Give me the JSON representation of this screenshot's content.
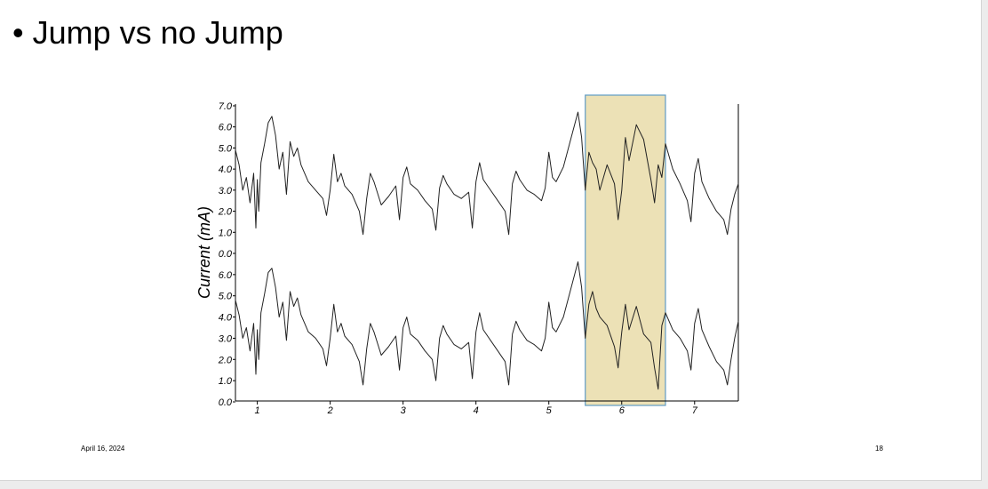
{
  "slide": {
    "bullet": "•",
    "title": "Jump vs no Jump",
    "footer_date": "April 16, 2024",
    "page_number": "18"
  },
  "chart_data": {
    "type": "line",
    "ylabel": "Current (mA)",
    "xlabel": "",
    "xlim": [
      0.7,
      7.6
    ],
    "x_ticks": [
      "1",
      "2",
      "3",
      "4",
      "5",
      "6",
      "7"
    ],
    "highlight": {
      "x_range": [
        5.5,
        6.6
      ],
      "fill": "#ece1b6",
      "stroke": "#5f9bc4"
    },
    "panels": [
      {
        "name": "top",
        "ylim": [
          0.0,
          7.0
        ],
        "y_ticks": [
          "7.0",
          "6.0",
          "5.0",
          "4.0",
          "3.0",
          "2.0",
          "1.0",
          "0.0"
        ],
        "series": [
          {
            "x": [
              0.7,
              0.75,
              0.8,
              0.85,
              0.9,
              0.95,
              0.98,
              1.0,
              1.02,
              1.05,
              1.1,
              1.15,
              1.2,
              1.25,
              1.3,
              1.35,
              1.4,
              1.45,
              1.5,
              1.55,
              1.6,
              1.65,
              1.7,
              1.8,
              1.9,
              1.95,
              2.0,
              2.05,
              2.1,
              2.15,
              2.2,
              2.3,
              2.4,
              2.45,
              2.5,
              2.55,
              2.6,
              2.7,
              2.8,
              2.9,
              2.95,
              3.0,
              3.05,
              3.1,
              3.2,
              3.3,
              3.4,
              3.45,
              3.5,
              3.55,
              3.6,
              3.7,
              3.8,
              3.9,
              3.95,
              4.0,
              4.05,
              4.1,
              4.2,
              4.3,
              4.4,
              4.45,
              4.5,
              4.55,
              4.6,
              4.7,
              4.8,
              4.9,
              4.95,
              5.0,
              5.05,
              5.1,
              5.2,
              5.3,
              5.4,
              5.45,
              5.5,
              5.55,
              5.6,
              5.65,
              5.7,
              5.8,
              5.9,
              5.95,
              6.0,
              6.05,
              6.1,
              6.2,
              6.3,
              6.4,
              6.45,
              6.5,
              6.55,
              6.6,
              6.7,
              6.8,
              6.9,
              6.95,
              7.0,
              7.05,
              7.1,
              7.2,
              7.3,
              7.4,
              7.45,
              7.5,
              7.55,
              7.6
            ],
            "y": [
              4.9,
              4.2,
              3.0,
              3.6,
              2.4,
              3.8,
              1.2,
              3.5,
              2.0,
              4.3,
              5.2,
              6.2,
              6.5,
              5.6,
              4.0,
              4.8,
              2.8,
              5.3,
              4.6,
              5.0,
              4.2,
              3.8,
              3.4,
              3.0,
              2.6,
              1.8,
              3.0,
              4.7,
              3.4,
              3.8,
              3.2,
              2.8,
              2.0,
              0.9,
              2.6,
              3.8,
              3.4,
              2.3,
              2.7,
              3.2,
              1.6,
              3.6,
              4.1,
              3.3,
              3.0,
              2.5,
              2.1,
              1.1,
              3.1,
              3.7,
              3.3,
              2.8,
              2.6,
              2.9,
              1.2,
              3.4,
              4.3,
              3.5,
              3.0,
              2.5,
              2.0,
              0.9,
              3.3,
              3.9,
              3.5,
              3.0,
              2.8,
              2.5,
              3.1,
              4.8,
              3.6,
              3.4,
              4.1,
              5.4,
              6.7,
              5.5,
              3.0,
              4.8,
              4.3,
              4.0,
              3.0,
              4.2,
              3.3,
              1.6,
              3.0,
              5.5,
              4.4,
              6.1,
              5.4,
              3.5,
              2.4,
              4.2,
              3.6,
              5.2,
              4.0,
              3.3,
              2.5,
              1.5,
              3.8,
              4.5,
              3.4,
              2.6,
              2.0,
              1.6,
              0.9,
              2.1,
              2.8,
              3.3
            ]
          }
        ]
      },
      {
        "name": "bottom",
        "ylim": [
          0.0,
          7.0
        ],
        "y_ticks": [
          "6.0",
          "5.0",
          "4.0",
          "3.0",
          "2.0",
          "1.0",
          "0.0"
        ],
        "series": [
          {
            "x": [
              0.7,
              0.75,
              0.8,
              0.85,
              0.9,
              0.95,
              0.98,
              1.0,
              1.02,
              1.05,
              1.1,
              1.15,
              1.2,
              1.25,
              1.3,
              1.35,
              1.4,
              1.45,
              1.5,
              1.55,
              1.6,
              1.65,
              1.7,
              1.8,
              1.9,
              1.95,
              2.0,
              2.05,
              2.1,
              2.15,
              2.2,
              2.3,
              2.4,
              2.45,
              2.5,
              2.55,
              2.6,
              2.7,
              2.8,
              2.9,
              2.95,
              3.0,
              3.05,
              3.1,
              3.2,
              3.3,
              3.4,
              3.45,
              3.5,
              3.55,
              3.6,
              3.7,
              3.8,
              3.9,
              3.95,
              4.0,
              4.05,
              4.1,
              4.2,
              4.3,
              4.4,
              4.45,
              4.5,
              4.55,
              4.6,
              4.7,
              4.8,
              4.9,
              4.95,
              5.0,
              5.05,
              5.1,
              5.2,
              5.3,
              5.4,
              5.45,
              5.5,
              5.55,
              5.6,
              5.65,
              5.7,
              5.8,
              5.9,
              5.95,
              6.0,
              6.05,
              6.1,
              6.2,
              6.3,
              6.4,
              6.45,
              6.5,
              6.55,
              6.6,
              6.7,
              6.8,
              6.9,
              6.95,
              7.0,
              7.05,
              7.1,
              7.2,
              7.3,
              7.4,
              7.45,
              7.5,
              7.55,
              7.6
            ],
            "y": [
              4.8,
              4.1,
              3.0,
              3.5,
              2.4,
              3.7,
              1.3,
              3.4,
              2.0,
              4.2,
              5.1,
              6.1,
              6.3,
              5.4,
              4.0,
              4.7,
              2.9,
              5.2,
              4.5,
              4.9,
              4.1,
              3.7,
              3.3,
              3.0,
              2.5,
              1.7,
              3.0,
              4.6,
              3.3,
              3.7,
              3.1,
              2.7,
              1.9,
              0.8,
              2.5,
              3.7,
              3.3,
              2.2,
              2.6,
              3.1,
              1.5,
              3.5,
              4.0,
              3.2,
              2.9,
              2.4,
              2.0,
              1.0,
              3.0,
              3.6,
              3.2,
              2.7,
              2.5,
              2.8,
              1.1,
              3.3,
              4.2,
              3.4,
              2.9,
              2.4,
              1.9,
              0.8,
              3.2,
              3.8,
              3.4,
              2.9,
              2.7,
              2.4,
              3.0,
              4.7,
              3.5,
              3.3,
              4.0,
              5.3,
              6.6,
              5.4,
              3.0,
              4.6,
              5.2,
              4.4,
              4.0,
              3.6,
              2.6,
              1.6,
              3.3,
              4.6,
              3.4,
              4.5,
              3.2,
              2.8,
              1.6,
              0.6,
              3.6,
              4.2,
              3.4,
              3.0,
              2.4,
              1.5,
              3.7,
              4.4,
              3.4,
              2.6,
              1.9,
              1.5,
              0.8,
              2.0,
              3.0,
              3.8
            ]
          }
        ]
      }
    ]
  }
}
